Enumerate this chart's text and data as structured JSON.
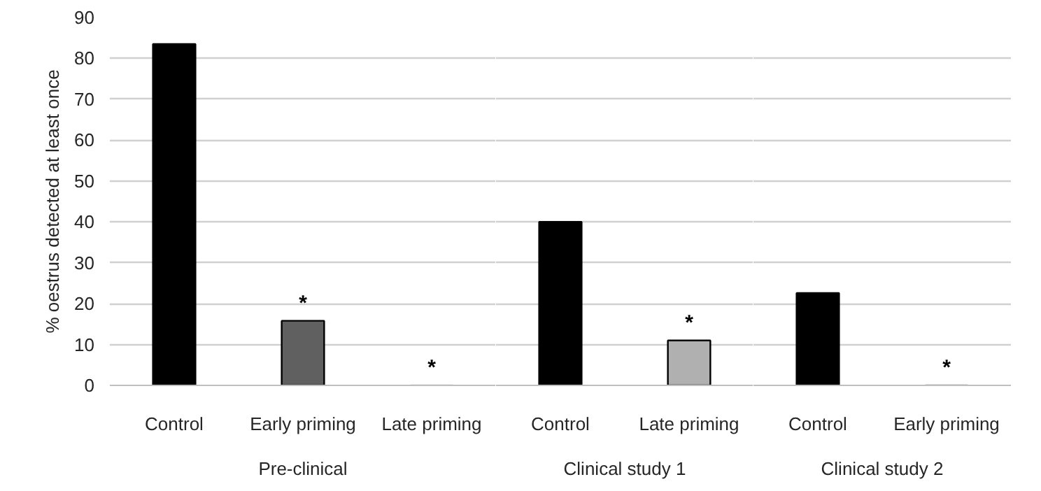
{
  "chart_data": [
    {
      "type": "bar",
      "xlabel": "Pre-clinical",
      "ylabel": "% oestrus detected at least once",
      "categories": [
        "Control",
        "Early priming",
        "Late priming"
      ],
      "values": [
        83.5,
        15.8,
        0
      ],
      "colors": [
        "#000000",
        "#606060",
        "#b0b0b0"
      ],
      "value_labels": [
        null,
        "*",
        "*"
      ],
      "ylim": [
        0,
        90
      ],
      "yticks": [
        0,
        10,
        20,
        30,
        40,
        50,
        60,
        70,
        80,
        90
      ],
      "grid": "y"
    },
    {
      "type": "bar",
      "xlabel": "Clinical study 1",
      "categories": [
        "Control",
        "Late priming"
      ],
      "values": [
        40.0,
        11.0
      ],
      "colors": [
        "#000000",
        "#b0b0b0"
      ],
      "value_labels": [
        null,
        "*"
      ],
      "ylim": [
        0,
        90
      ],
      "yticks": [
        0,
        10,
        20,
        30,
        40,
        50,
        60,
        70,
        80,
        90
      ],
      "grid": "y",
      "tick_labels": "x"
    },
    {
      "type": "bar",
      "xlabel": "Clinical study 2",
      "categories": [
        "Control",
        "Early priming"
      ],
      "values": [
        22.6,
        0
      ],
      "colors": [
        "#000000",
        "#606060"
      ],
      "value_labels": [
        null,
        "*"
      ],
      "ylim": [
        0,
        90
      ],
      "yticks": [
        0,
        10,
        20,
        30,
        40,
        50,
        60,
        70,
        80,
        90
      ],
      "grid": "y",
      "tick_labels": "x"
    }
  ]
}
